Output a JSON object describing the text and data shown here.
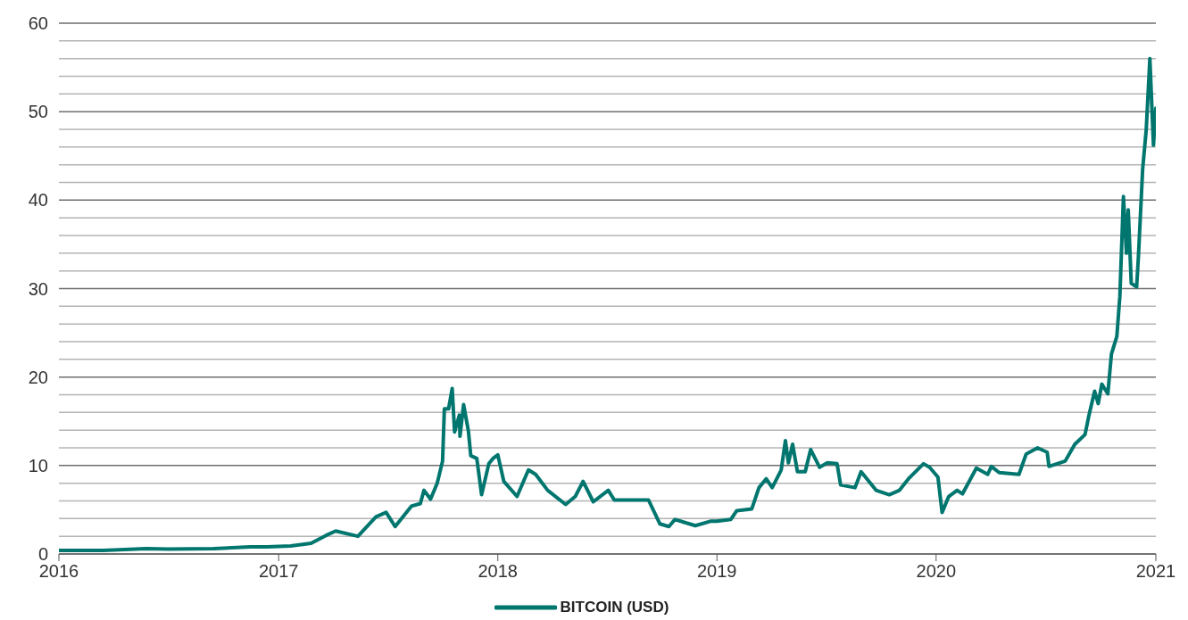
{
  "chart_data": {
    "type": "line",
    "legend": "bottom",
    "grid": "y",
    "marker": "none",
    "line_style": "solid",
    "xlim": [
      "2016",
      "2021"
    ],
    "xticks": [
      "2016",
      "2017",
      "2018",
      "2019",
      "2020",
      "2021"
    ],
    "ylim": [
      0,
      60
    ],
    "yticks": [
      0,
      {
        "value": 2,
        "label": null
      },
      {
        "value": 4,
        "label": null
      },
      {
        "value": 6,
        "label": null
      },
      {
        "value": 8,
        "label": null
      },
      10,
      {
        "value": 12,
        "label": null
      },
      {
        "value": 14,
        "label": null
      },
      {
        "value": 16,
        "label": null
      },
      {
        "value": 18,
        "label": null
      },
      20,
      {
        "value": 22,
        "label": null
      },
      {
        "value": 24,
        "label": null
      },
      {
        "value": 26,
        "label": null
      },
      {
        "value": 28,
        "label": null
      },
      30,
      {
        "value": 32,
        "label": null
      },
      {
        "value": 34,
        "label": null
      },
      {
        "value": 36,
        "label": null
      },
      {
        "value": 38,
        "label": null
      },
      40,
      {
        "value": 42,
        "label": null
      },
      {
        "value": 44,
        "label": null
      },
      {
        "value": 46,
        "label": null
      },
      {
        "value": 48,
        "label": null
      },
      50,
      {
        "value": 52,
        "label": null
      },
      {
        "value": 54,
        "label": null
      },
      {
        "value": 56,
        "label": null
      },
      {
        "value": 58,
        "label": null
      },
      60
    ],
    "x": [
      "2016-01-01",
      "2016-03-15",
      "2016-05-25",
      "2016-07-01",
      "2016-09-15",
      "2016-11-15",
      "2016-12-13",
      "2017-01-21",
      "2017-02-24",
      "2017-03-21",
      "2017-04-06",
      "2017-05-13",
      "2017-06-12",
      "2017-06-29",
      "2017-07-14",
      "2017-08-10",
      "2017-08-25",
      "2017-08-31",
      "2017-09-11",
      "2017-09-22",
      "2017-10-01",
      "2017-10-04",
      "2017-10-11",
      "2017-10-17",
      "2017-10-21",
      "2017-10-29",
      "2017-10-30",
      "2017-11-05",
      "2017-11-13",
      "2017-11-17",
      "2017-11-27",
      "2017-12-05",
      "2017-12-17",
      "2017-12-24",
      "2018-01-01",
      "2018-01-11",
      "2018-02-02",
      "2018-02-21",
      "2018-03-05",
      "2018-03-25",
      "2018-04-24",
      "2018-05-10",
      "2018-05-23",
      "2018-06-09",
      "2018-07-04",
      "2018-07-14",
      "2018-09-09",
      "2018-09-28",
      "2018-10-13",
      "2018-10-23",
      "2018-11-26",
      "2018-12-21",
      "2019-01-01",
      "2019-01-24",
      "2019-02-03",
      "2019-02-28",
      "2019-03-12",
      "2019-03-24",
      "2019-04-03",
      "2019-04-18",
      "2019-04-25",
      "2019-04-30",
      "2019-05-07",
      "2019-05-15",
      "2019-05-28",
      "2019-06-06",
      "2019-06-21",
      "2019-07-04",
      "2019-07-20",
      "2019-07-26",
      "2019-08-19",
      "2019-08-29",
      "2019-09-23",
      "2019-10-15",
      "2019-11-01",
      "2019-11-16",
      "2019-12-11",
      "2019-12-21",
      "2020-01-04",
      "2020-01-11",
      "2020-01-22",
      "2020-02-05",
      "2020-02-14",
      "2020-03-08",
      "2020-03-27",
      "2020-04-02",
      "2020-04-15",
      "2020-05-18",
      "2020-05-30",
      "2020-06-18",
      "2020-07-04",
      "2020-07-07",
      "2020-08-03",
      "2020-08-19",
      "2020-09-05",
      "2020-09-11",
      "2020-09-21",
      "2020-09-27",
      "2020-10-03",
      "2020-10-13",
      "2020-10-19",
      "2020-10-28",
      "2020-11-02",
      "2020-11-08",
      "2020-11-13",
      "2020-11-16",
      "2020-11-21",
      "2020-11-30",
      "2020-12-03",
      "2020-12-10",
      "2020-12-16",
      "2020-12-22",
      "2020-12-28",
      "2021-01-01"
    ],
    "series": [
      {
        "name": "BITCOIN (USD)",
        "color": "#00766f",
        "values": [
          0.4,
          0.4,
          0.6,
          0.55,
          0.6,
          0.8,
          0.8,
          0.9,
          1.2,
          2.1,
          2.6,
          2.0,
          4.2,
          4.7,
          3.1,
          5.4,
          5.7,
          7.2,
          6.2,
          8.0,
          10.5,
          16.4,
          16.4,
          18.7,
          13.8,
          15.7,
          13.3,
          16.9,
          13.9,
          11.1,
          10.8,
          6.7,
          10.2,
          10.8,
          11.2,
          8.2,
          6.5,
          9.5,
          9.0,
          7.2,
          5.6,
          6.5,
          8.2,
          5.9,
          7.2,
          6.1,
          6.1,
          3.4,
          3.1,
          3.9,
          3.2,
          3.7,
          3.7,
          3.9,
          4.9,
          5.1,
          7.5,
          8.5,
          7.5,
          9.5,
          12.8,
          10.3,
          12.4,
          9.3,
          9.3,
          11.8,
          9.8,
          10.3,
          10.2,
          7.8,
          7.5,
          9.3,
          7.2,
          6.7,
          7.2,
          8.5,
          10.2,
          9.8,
          8.7,
          4.7,
          6.5,
          7.2,
          6.8,
          9.7,
          9.0,
          9.9,
          9.2,
          9.0,
          11.3,
          12.0,
          11.5,
          9.9,
          10.5,
          12.4,
          13.5,
          15.5,
          18.4,
          17.0,
          19.2,
          18.1,
          22.6,
          24.6,
          29.1,
          40.4,
          34.0,
          38.9,
          30.6,
          30.2,
          33.7,
          43.5,
          48.0,
          56.0,
          46.2,
          50.4
        ]
      }
    ]
  }
}
